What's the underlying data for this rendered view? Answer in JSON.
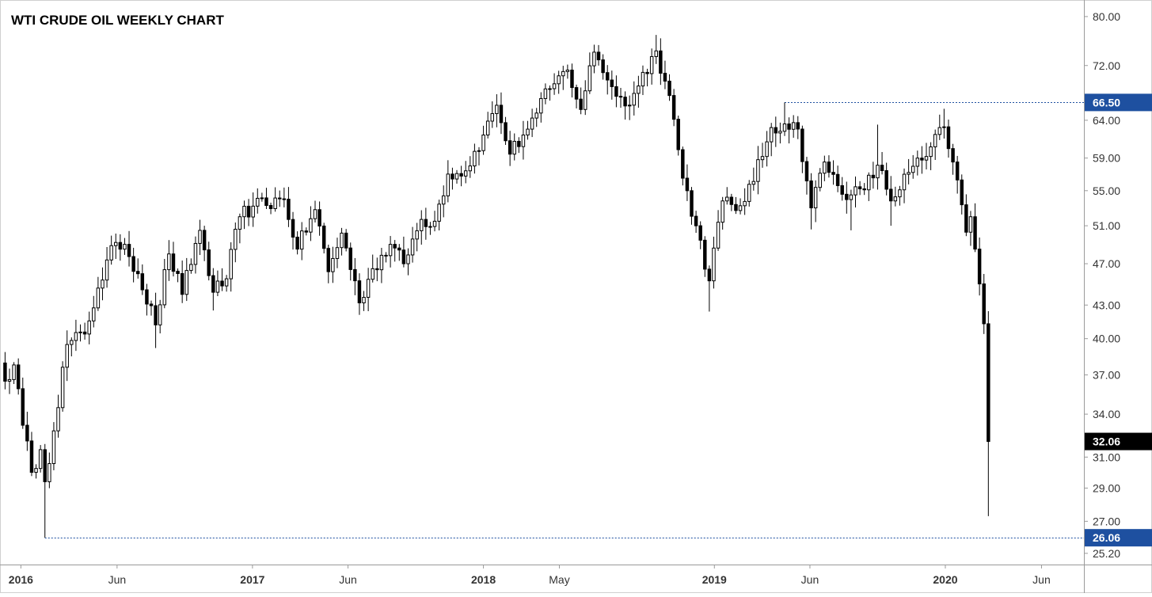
{
  "chart_data": {
    "type": "candlestick",
    "title": "WTI CRUDE OIL WEEKLY CHART",
    "y_axis": {
      "position": "right",
      "ticks": [
        "80.00",
        "72.00",
        "64.00",
        "59.00",
        "55.00",
        "51.00",
        "47.00",
        "43.00",
        "40.00",
        "37.00",
        "34.00",
        "31.00",
        "29.00",
        "27.00",
        "25.20"
      ],
      "range": [
        24.6,
        82.2
      ],
      "scale": "log"
    },
    "x_axis": {
      "ticks": [
        {
          "label": "2016",
          "date": "2016-01-01",
          "bold": true
        },
        {
          "label": "Jun",
          "date": "2016-06-01",
          "bold": false
        },
        {
          "label": "2017",
          "date": "2017-01-01",
          "bold": true
        },
        {
          "label": "Jun",
          "date": "2017-06-01",
          "bold": false
        },
        {
          "label": "2018",
          "date": "2018-01-01",
          "bold": true
        },
        {
          "label": "May",
          "date": "2018-05-01",
          "bold": false
        },
        {
          "label": "2019",
          "date": "2019-01-01",
          "bold": true
        },
        {
          "label": "Jun",
          "date": "2019-06-01",
          "bold": false
        },
        {
          "label": "2020",
          "date": "2020-01-01",
          "bold": true
        },
        {
          "label": "Jun",
          "date": "2020-06-01",
          "bold": false
        }
      ],
      "range": [
        "2015-12-04",
        "2020-08-07"
      ]
    },
    "price_labels": [
      {
        "value": 66.5,
        "text": "66.50",
        "color": "#1e50a0"
      },
      {
        "value": 32.06,
        "text": "32.06",
        "color": "#000000"
      },
      {
        "value": 26.06,
        "text": "26.06",
        "color": "#1e50a0"
      }
    ],
    "horizontal_lines": [
      {
        "value": 66.5,
        "from_date": "2019-04-22",
        "color": "#1e50a0",
        "style": "dotted"
      },
      {
        "value": 26.06,
        "from_date": "2016-02-08",
        "color": "#1e50a0",
        "style": "dotted"
      }
    ],
    "anchors": [
      {
        "date": "2015-12-07",
        "close": 36.5
      },
      {
        "date": "2015-12-21",
        "close": 37.8
      },
      {
        "date": "2016-01-04",
        "close": 33.2
      },
      {
        "date": "2016-01-18",
        "close": 30.0
      },
      {
        "date": "2016-02-01",
        "close": 31.5
      },
      {
        "date": "2016-02-08",
        "close": 29.4,
        "low": 26.06
      },
      {
        "date": "2016-02-22",
        "close": 32.8
      },
      {
        "date": "2016-03-14",
        "close": 39.5
      },
      {
        "date": "2016-04-11",
        "close": 40.4
      },
      {
        "date": "2016-05-02",
        "close": 44.6
      },
      {
        "date": "2016-05-30",
        "close": 49.2
      },
      {
        "date": "2016-06-13",
        "close": 49.0
      },
      {
        "date": "2016-07-04",
        "close": 46.0
      },
      {
        "date": "2016-08-01",
        "close": 41.2,
        "low": 39.2
      },
      {
        "date": "2016-08-22",
        "close": 48.0
      },
      {
        "date": "2016-09-12",
        "close": 44.0
      },
      {
        "date": "2016-10-10",
        "close": 50.5
      },
      {
        "date": "2016-10-31",
        "close": 44.2,
        "low": 42.5
      },
      {
        "date": "2016-11-21",
        "close": 45.5
      },
      {
        "date": "2016-12-12",
        "close": 52.0
      },
      {
        "date": "2017-01-02",
        "close": 53.2
      },
      {
        "date": "2017-02-20",
        "close": 54.0
      },
      {
        "date": "2017-03-13",
        "close": 48.5
      },
      {
        "date": "2017-04-10",
        "close": 52.8
      },
      {
        "date": "2017-05-01",
        "close": 46.2
      },
      {
        "date": "2017-05-22",
        "close": 50.2
      },
      {
        "date": "2017-06-19",
        "close": 43.2,
        "low": 42.1
      },
      {
        "date": "2017-07-10",
        "close": 46.5
      },
      {
        "date": "2017-08-07",
        "close": 49.0
      },
      {
        "date": "2017-08-28",
        "close": 47.0
      },
      {
        "date": "2017-09-25",
        "close": 51.7
      },
      {
        "date": "2017-10-16",
        "close": 51.5
      },
      {
        "date": "2017-11-06",
        "close": 57.0
      },
      {
        "date": "2017-12-04",
        "close": 57.4
      },
      {
        "date": "2018-01-01",
        "close": 62.0
      },
      {
        "date": "2018-01-22",
        "close": 66.1
      },
      {
        "date": "2018-02-12",
        "close": 59.5,
        "low": 58.0
      },
      {
        "date": "2018-03-05",
        "close": 62.0
      },
      {
        "date": "2018-03-26",
        "close": 65.0
      },
      {
        "date": "2018-04-16",
        "close": 68.5
      },
      {
        "date": "2018-05-14",
        "close": 71.3
      },
      {
        "date": "2018-06-04",
        "close": 65.5
      },
      {
        "date": "2018-06-25",
        "close": 74.1,
        "high": 75.3
      },
      {
        "date": "2018-07-23",
        "close": 68.8
      },
      {
        "date": "2018-08-13",
        "close": 66.0
      },
      {
        "date": "2018-09-03",
        "close": 68.9
      },
      {
        "date": "2018-09-24",
        "close": 73.4
      },
      {
        "date": "2018-10-01",
        "close": 74.3,
        "high": 76.9
      },
      {
        "date": "2018-10-22",
        "close": 67.5
      },
      {
        "date": "2018-11-12",
        "close": 56.5
      },
      {
        "date": "2018-12-03",
        "close": 51.0
      },
      {
        "date": "2018-12-24",
        "close": 45.3,
        "low": 42.4
      },
      {
        "date": "2019-01-14",
        "close": 53.8
      },
      {
        "date": "2019-02-04",
        "close": 52.7
      },
      {
        "date": "2019-03-04",
        "close": 56.1
      },
      {
        "date": "2019-04-01",
        "close": 63.0
      },
      {
        "date": "2019-04-22",
        "close": 63.5,
        "high": 66.5
      },
      {
        "date": "2019-05-13",
        "close": 62.8
      },
      {
        "date": "2019-06-03",
        "close": 53.0,
        "low": 50.6
      },
      {
        "date": "2019-06-24",
        "close": 58.5
      },
      {
        "date": "2019-07-15",
        "close": 55.6
      },
      {
        "date": "2019-08-05",
        "close": 54.5,
        "low": 50.5
      },
      {
        "date": "2019-08-26",
        "close": 55.1
      },
      {
        "date": "2019-09-16",
        "close": 58.1,
        "high": 63.4
      },
      {
        "date": "2019-10-07",
        "close": 53.8,
        "low": 51.0
      },
      {
        "date": "2019-11-04",
        "close": 57.2
      },
      {
        "date": "2019-12-02",
        "close": 59.2
      },
      {
        "date": "2019-12-30",
        "close": 63.1,
        "high": 65.6
      },
      {
        "date": "2020-01-13",
        "close": 58.5
      },
      {
        "date": "2020-02-03",
        "close": 50.3
      },
      {
        "date": "2020-02-10",
        "close": 52.0
      },
      {
        "date": "2020-02-24",
        "close": 45.0
      },
      {
        "date": "2020-03-02",
        "close": 41.3
      },
      {
        "date": "2020-03-09",
        "close": 32.06,
        "low": 27.3
      }
    ]
  }
}
